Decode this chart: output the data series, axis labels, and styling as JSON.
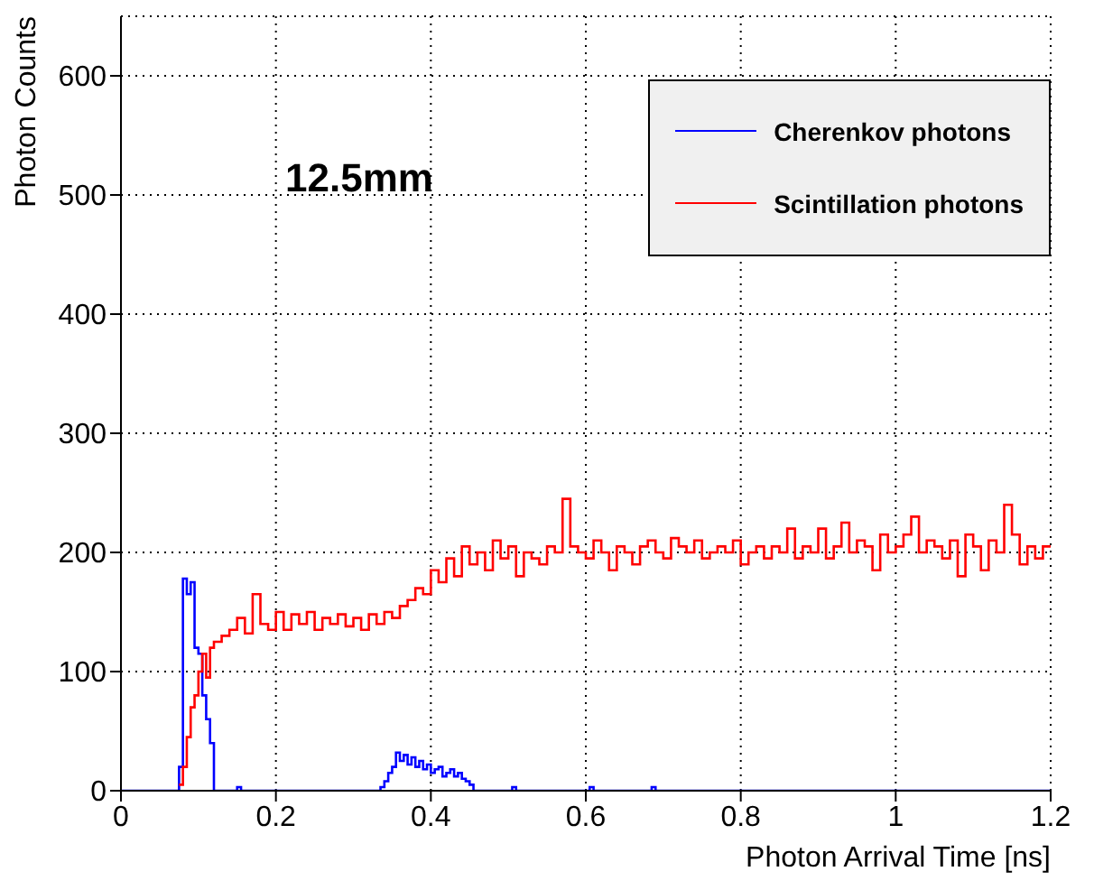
{
  "chart_data": {
    "type": "step",
    "xlabel": "Photon Arrival Time [ns]",
    "ylabel": "Photon Counts",
    "annotations": [
      "12.5mm"
    ],
    "xlim": [
      0,
      1.2
    ],
    "xticks": [
      0,
      0.2,
      0.4,
      0.6,
      0.8,
      1,
      1.2
    ],
    "ylim": [
      0,
      650
    ],
    "yticks": [
      0,
      100,
      200,
      300,
      400,
      500,
      600
    ],
    "grid": true,
    "legend": "top right",
    "series": [
      {
        "name": "Cherenkov photons",
        "color": "#0000ff",
        "x": [
          0,
          0.075,
          0.08,
          0.085,
          0.09,
          0.095,
          0.1,
          0.105,
          0.11,
          0.115,
          0.12,
          0.15,
          0.155,
          0.16,
          0.33,
          0.335,
          0.34,
          0.345,
          0.35,
          0.355,
          0.36,
          0.365,
          0.37,
          0.375,
          0.38,
          0.385,
          0.39,
          0.395,
          0.4,
          0.405,
          0.41,
          0.415,
          0.42,
          0.425,
          0.43,
          0.435,
          0.44,
          0.445,
          0.45,
          0.455,
          0.505,
          0.51,
          0.605,
          0.61,
          0.685,
          0.69,
          1.2
        ],
        "values": [
          0,
          20,
          178,
          165,
          175,
          120,
          115,
          80,
          60,
          40,
          0,
          3,
          0,
          0,
          0,
          3,
          8,
          15,
          20,
          32,
          25,
          30,
          22,
          28,
          20,
          25,
          18,
          22,
          15,
          18,
          20,
          12,
          15,
          18,
          12,
          15,
          10,
          8,
          5,
          0,
          3,
          0,
          3,
          0,
          3,
          0,
          0
        ]
      },
      {
        "name": "Scintillation photons",
        "color": "#ff0000",
        "x": [
          0.075,
          0.08,
          0.085,
          0.09,
          0.095,
          0.1,
          0.105,
          0.11,
          0.115,
          0.12,
          0.13,
          0.14,
          0.15,
          0.16,
          0.17,
          0.18,
          0.19,
          0.2,
          0.21,
          0.22,
          0.23,
          0.24,
          0.25,
          0.26,
          0.27,
          0.28,
          0.29,
          0.3,
          0.31,
          0.32,
          0.33,
          0.34,
          0.35,
          0.36,
          0.37,
          0.38,
          0.39,
          0.4,
          0.41,
          0.42,
          0.43,
          0.44,
          0.45,
          0.46,
          0.47,
          0.48,
          0.49,
          0.5,
          0.51,
          0.52,
          0.53,
          0.54,
          0.55,
          0.56,
          0.57,
          0.58,
          0.59,
          0.6,
          0.61,
          0.62,
          0.63,
          0.64,
          0.65,
          0.66,
          0.67,
          0.68,
          0.69,
          0.7,
          0.71,
          0.72,
          0.73,
          0.74,
          0.75,
          0.76,
          0.77,
          0.78,
          0.79,
          0.8,
          0.81,
          0.82,
          0.83,
          0.84,
          0.85,
          0.86,
          0.87,
          0.88,
          0.89,
          0.9,
          0.91,
          0.92,
          0.93,
          0.94,
          0.95,
          0.96,
          0.97,
          0.98,
          0.99,
          1,
          1.01,
          1.02,
          1.03,
          1.04,
          1.05,
          1.06,
          1.07,
          1.08,
          1.09,
          1.1,
          1.11,
          1.12,
          1.13,
          1.14,
          1.15,
          1.16,
          1.17,
          1.18,
          1.19,
          1.2
        ],
        "values": [
          5,
          20,
          45,
          70,
          80,
          100,
          115,
          95,
          120,
          125,
          130,
          135,
          145,
          132,
          165,
          140,
          135,
          150,
          135,
          148,
          140,
          150,
          135,
          145,
          140,
          148,
          138,
          145,
          135,
          148,
          140,
          150,
          145,
          155,
          160,
          170,
          165,
          185,
          175,
          195,
          180,
          205,
          190,
          200,
          185,
          210,
          195,
          205,
          180,
          200,
          195,
          190,
          205,
          200,
          245,
          205,
          200,
          195,
          210,
          200,
          185,
          205,
          200,
          190,
          205,
          210,
          200,
          195,
          212,
          205,
          200,
          210,
          195,
          200,
          205,
          200,
          210,
          190,
          200,
          205,
          195,
          205,
          200,
          220,
          195,
          205,
          200,
          220,
          195,
          205,
          225,
          200,
          210,
          205,
          185,
          215,
          200,
          205,
          215,
          230,
          200,
          210,
          205,
          195,
          210,
          180,
          215,
          205,
          185,
          210,
          200,
          240,
          215,
          190,
          205,
          195,
          205,
          205
        ]
      }
    ]
  }
}
